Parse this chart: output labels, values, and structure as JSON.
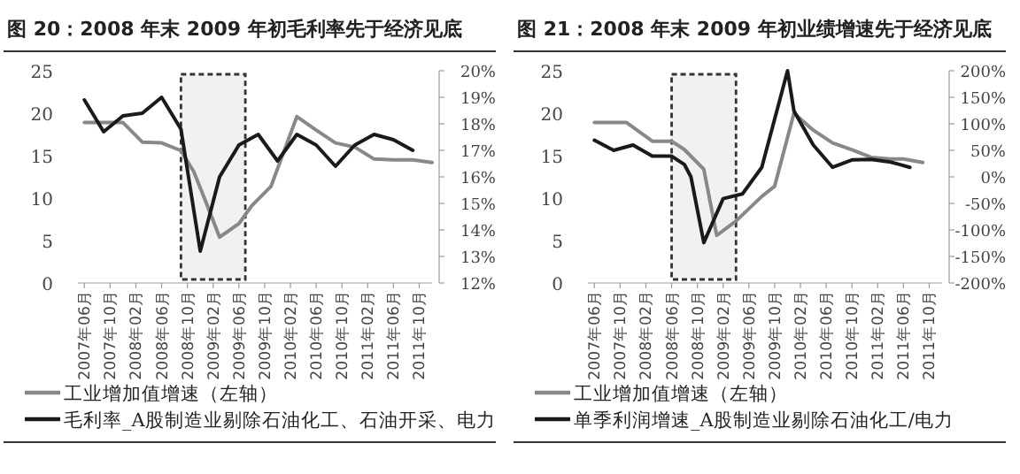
{
  "chart_data": [
    {
      "type": "line",
      "title": "图 20：2008 年末 2009 年初毛利率先于经济见底",
      "xlim": [
        "2007-05",
        "2011-12"
      ],
      "xticks": [
        {
          "value": "2007-06",
          "label": "2007年06月"
        },
        {
          "value": "2007-10",
          "label": "2007年10月"
        },
        {
          "value": "2008-02",
          "label": "2008年02月"
        },
        {
          "value": "2008-06",
          "label": "2008年06月"
        },
        {
          "value": "2008-10",
          "label": "2008年10月"
        },
        {
          "value": "2009-02",
          "label": "2009年02月"
        },
        {
          "value": "2009-06",
          "label": "2009年06月"
        },
        {
          "value": "2009-10",
          "label": "2009年10月"
        },
        {
          "value": "2010-02",
          "label": "2010年02月"
        },
        {
          "value": "2010-06",
          "label": "2010年06月"
        },
        {
          "value": "2010-10",
          "label": "2010年10月"
        },
        {
          "value": "2011-02",
          "label": "2011年02月"
        },
        {
          "value": "2011-06",
          "label": "2011年06月"
        },
        {
          "value": "2011-10",
          "label": "2011年10月"
        }
      ],
      "ylim": [
        0,
        25
      ],
      "yticks": [
        0,
        5,
        10,
        15,
        20,
        25
      ],
      "y2lim": [
        12,
        20
      ],
      "y2ticks": [
        {
          "value": 12,
          "label": "12%"
        },
        {
          "value": 13,
          "label": "13%"
        },
        {
          "value": 14,
          "label": "14%"
        },
        {
          "value": 15,
          "label": "15%"
        },
        {
          "value": 16,
          "label": "16%"
        },
        {
          "value": 17,
          "label": "17%"
        },
        {
          "value": 18,
          "label": "18%"
        },
        {
          "value": 19,
          "label": "19%"
        },
        {
          "value": 20,
          "label": "20%"
        }
      ],
      "legend": "bottom",
      "bands": [
        {
          "axis": "x",
          "from": "2008-09",
          "to": "2009-07",
          "color": "#333333"
        }
      ],
      "series": [
        {
          "name": "工业增加值增速（左轴）",
          "color": "#888888",
          "x": [
            "2007-06",
            "2007-09",
            "2007-12",
            "2008-03",
            "2008-06",
            "2008-09",
            "2008-11",
            "2009-01",
            "2009-03",
            "2009-06",
            "2009-08",
            "2009-11",
            "2010-03",
            "2010-06",
            "2010-09",
            "2010-12",
            "2011-03",
            "2011-06",
            "2011-09",
            "2011-12"
          ],
          "values": [
            18.9,
            18.9,
            18.9,
            16.6,
            16.5,
            15.6,
            13.1,
            9.3,
            5.4,
            7.0,
            9.1,
            11.4,
            19.6,
            18.0,
            16.5,
            16.0,
            14.6,
            14.5,
            14.5,
            14.2
          ]
        },
        {
          "name": "毛利率_A股制造业剔除石油化工、石油开采、电力",
          "color": "#1a1a1a",
          "axis": "y2",
          "x": [
            "2007-06",
            "2007-09",
            "2007-12",
            "2008-03",
            "2008-06",
            "2008-09",
            "2008-12",
            "2009-03",
            "2009-06",
            "2009-09",
            "2009-12",
            "2010-03",
            "2010-06",
            "2010-09",
            "2010-12",
            "2011-03",
            "2011-06",
            "2011-09"
          ],
          "values": [
            18.9,
            17.7,
            18.3,
            18.4,
            19.0,
            17.8,
            13.2,
            16.0,
            17.2,
            17.6,
            16.6,
            17.6,
            17.2,
            16.4,
            17.2,
            17.6,
            17.4,
            17.0
          ]
        }
      ]
    },
    {
      "type": "line",
      "title": "图 21：2008 年末 2009 年初业绩增速先于经济见底",
      "xlim": [
        "2007-05",
        "2011-12"
      ],
      "xticks": [
        {
          "value": "2007-06",
          "label": "2007年06月"
        },
        {
          "value": "2007-10",
          "label": "2007年10月"
        },
        {
          "value": "2008-02",
          "label": "2008年02月"
        },
        {
          "value": "2008-06",
          "label": "2008年06月"
        },
        {
          "value": "2008-10",
          "label": "2008年10月"
        },
        {
          "value": "2009-02",
          "label": "2009年02月"
        },
        {
          "value": "2009-06",
          "label": "2009年06月"
        },
        {
          "value": "2009-10",
          "label": "2009年10月"
        },
        {
          "value": "2010-02",
          "label": "2010年02月"
        },
        {
          "value": "2010-06",
          "label": "2010年06月"
        },
        {
          "value": "2010-10",
          "label": "2010年10月"
        },
        {
          "value": "2011-02",
          "label": "2011年02月"
        },
        {
          "value": "2011-06",
          "label": "2011年06月"
        },
        {
          "value": "2011-10",
          "label": "2011年10月"
        }
      ],
      "ylim": [
        0,
        25
      ],
      "yticks": [
        0,
        5,
        10,
        15,
        20,
        25
      ],
      "y2lim": [
        -200,
        200
      ],
      "y2ticks": [
        {
          "value": -200,
          "label": "-200%"
        },
        {
          "value": -150,
          "label": "-150%"
        },
        {
          "value": -100,
          "label": "-100%"
        },
        {
          "value": -50,
          "label": "-50%"
        },
        {
          "value": 0,
          "label": "0%"
        },
        {
          "value": 50,
          "label": "50%"
        },
        {
          "value": 100,
          "label": "100%"
        },
        {
          "value": 150,
          "label": "150%"
        },
        {
          "value": 200,
          "label": "200%"
        }
      ],
      "legend": "bottom",
      "bands": [
        {
          "axis": "x",
          "from": "2008-06",
          "to": "2009-04",
          "color": "#333333"
        }
      ],
      "series": [
        {
          "name": "工业增加值增速（左轴）",
          "color": "#888888",
          "x": [
            "2007-06",
            "2007-11",
            "2008-03",
            "2008-06",
            "2008-08",
            "2008-11",
            "2009-01",
            "2009-04",
            "2009-08",
            "2009-10",
            "2010-01",
            "2010-04",
            "2010-07",
            "2010-10",
            "2011-01",
            "2011-04",
            "2011-06",
            "2011-09"
          ],
          "values": [
            18.9,
            18.9,
            16.7,
            16.7,
            15.7,
            13.4,
            5.6,
            7.3,
            10.2,
            11.4,
            20.0,
            18.0,
            16.5,
            15.7,
            14.8,
            14.6,
            14.6,
            14.2
          ]
        },
        {
          "name": "单季利润增速_A股制造业剔除石油化工/电力",
          "color": "#1a1a1a",
          "axis": "y2",
          "x": [
            "2007-06",
            "2007-09",
            "2007-12",
            "2008-03",
            "2008-06",
            "2008-08",
            "2008-09",
            "2008-11",
            "2009-02",
            "2009-05",
            "2009-08",
            "2009-12",
            "2010-01",
            "2010-04",
            "2010-07",
            "2010-10",
            "2011-01",
            "2011-04",
            "2011-07"
          ],
          "values": [
            69,
            50,
            60,
            39,
            39,
            23,
            0,
            -124,
            -41,
            -32,
            18,
            200,
            124,
            60,
            18,
            32,
            33,
            28,
            18
          ]
        }
      ]
    }
  ]
}
